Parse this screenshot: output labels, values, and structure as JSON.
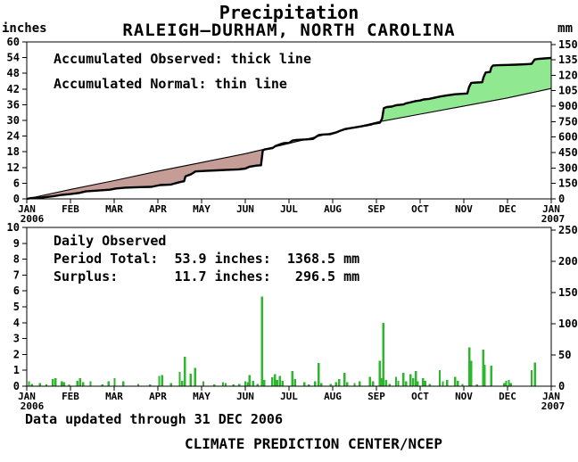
{
  "title": "Precipitation",
  "subtitle": "RALEIGH–DURHAM, NORTH CAROLINA",
  "units": {
    "left": "inches",
    "right": "mm"
  },
  "legend": {
    "observed": "Accumulated Observed: thick line",
    "normal": "Accumulated Normal: thin line"
  },
  "daily_panel": {
    "header": "Daily Observed",
    "period_total": "Period Total:  53.9 inches:  1368.5 mm",
    "surplus": "Surplus:       11.7 inches:   296.5 mm"
  },
  "footer": {
    "note": "Data updated through 31 DEC 2006",
    "org": "CLIMATE PREDICTION CENTER/NCEP"
  },
  "colors": {
    "surplus_fill": "#90e890",
    "deficit_fill": "#c69c96",
    "bar": "#2cb82c",
    "line": "#000000",
    "background": "#ffffff"
  },
  "chart_data": [
    {
      "type": "area",
      "title": "Accumulated precipitation, Raleigh-Durham NC, 1 Jan 2006 - 1 Jan 2007",
      "x_axis": {
        "unit": "months (0 = 1 JAN 2006)",
        "tick_labels": [
          "JAN",
          "FEB",
          "MAR",
          "APR",
          "MAY",
          "JUN",
          "JUL",
          "AUG",
          "SEP",
          "OCT",
          "NOV",
          "DEC",
          "JAN"
        ],
        "start_year": "2006",
        "end_year": "2007"
      },
      "y_left": {
        "unit": "inches",
        "min": 0,
        "max": 60,
        "ticks": [
          0,
          6,
          12,
          18,
          24,
          30,
          36,
          42,
          48,
          54,
          60
        ]
      },
      "y_right": {
        "unit": "mm",
        "min": 0,
        "max": 1500,
        "ticks": [
          0,
          150,
          300,
          450,
          600,
          750,
          900,
          1050,
          1200,
          1350,
          1500
        ]
      },
      "legend_position": "top-left inside plot",
      "grid": false,
      "series": [
        {
          "name": "Accumulated Observed",
          "line": "thick",
          "end_value_inches": 53.9,
          "end_value_mm": 1368.5,
          "points": [
            [
              0,
              0
            ],
            [
              0.1,
              0.3
            ],
            [
              0.35,
              0.55
            ],
            [
              0.6,
              1.0
            ],
            [
              0.8,
              1.55
            ],
            [
              1.0,
              1.85
            ],
            [
              1.2,
              2.3
            ],
            [
              1.35,
              2.85
            ],
            [
              1.65,
              3.2
            ],
            [
              1.9,
              3.5
            ],
            [
              2.05,
              4.0
            ],
            [
              2.25,
              4.3
            ],
            [
              2.6,
              4.5
            ],
            [
              2.85,
              4.6
            ],
            [
              3.05,
              5.3
            ],
            [
              3.3,
              5.5
            ],
            [
              3.5,
              6.4
            ],
            [
              3.6,
              6.75
            ],
            [
              3.63,
              8.6
            ],
            [
              3.76,
              9.4
            ],
            [
              3.86,
              10.5
            ],
            [
              4.1,
              10.7
            ],
            [
              4.35,
              10.9
            ],
            [
              4.6,
              11.1
            ],
            [
              4.85,
              11.3
            ],
            [
              5.0,
              11.6
            ],
            [
              5.1,
              12.3
            ],
            [
              5.25,
              12.7
            ],
            [
              5.36,
              12.85
            ],
            [
              5.4,
              18.5
            ],
            [
              5.44,
              18.9
            ],
            [
              5.62,
              19.4
            ],
            [
              5.7,
              20.3
            ],
            [
              5.8,
              20.9
            ],
            [
              5.88,
              21.3
            ],
            [
              6.0,
              21.4
            ],
            [
              6.08,
              22.3
            ],
            [
              6.15,
              22.5
            ],
            [
              6.35,
              22.7
            ],
            [
              6.55,
              22.9
            ],
            [
              6.68,
              24.4
            ],
            [
              6.78,
              24.6
            ],
            [
              6.95,
              24.75
            ],
            [
              7.08,
              25.4
            ],
            [
              7.15,
              25.9
            ],
            [
              7.28,
              26.7
            ],
            [
              7.5,
              27.3
            ],
            [
              7.65,
              27.7
            ],
            [
              7.87,
              28.4
            ],
            [
              7.95,
              28.8
            ],
            [
              8.08,
              29.1
            ],
            [
              8.13,
              30.7
            ],
            [
              8.17,
              34.7
            ],
            [
              8.24,
              35.1
            ],
            [
              8.35,
              35.3
            ],
            [
              8.45,
              35.8
            ],
            [
              8.62,
              36.1
            ],
            [
              8.67,
              36.5
            ],
            [
              8.8,
              37.0
            ],
            [
              8.9,
              37.4
            ],
            [
              9.0,
              37.6
            ],
            [
              9.08,
              38.0
            ],
            [
              9.2,
              38.2
            ],
            [
              9.45,
              39.1
            ],
            [
              9.6,
              39.5
            ],
            [
              9.8,
              40.0
            ],
            [
              10.08,
              40.3
            ],
            [
              10.12,
              42.75
            ],
            [
              10.17,
              44.35
            ],
            [
              10.3,
              44.5
            ],
            [
              10.42,
              44.6
            ],
            [
              10.45,
              46.4
            ],
            [
              10.5,
              48.3
            ],
            [
              10.6,
              48.5
            ],
            [
              10.63,
              50.3
            ],
            [
              10.67,
              51.0
            ],
            [
              10.8,
              51.1
            ],
            [
              11.0,
              51.2
            ],
            [
              11.2,
              51.3
            ],
            [
              11.45,
              51.5
            ],
            [
              11.55,
              51.6
            ],
            [
              11.62,
              53.3
            ],
            [
              11.7,
              53.5
            ],
            [
              11.85,
              53.7
            ],
            [
              12,
              53.9
            ]
          ]
        },
        {
          "name": "Accumulated Normal",
          "line": "thin",
          "end_value_inches": 42.2,
          "points": [
            [
              0,
              0
            ],
            [
              1,
              3.6
            ],
            [
              2,
              7.0
            ],
            [
              3,
              10.6
            ],
            [
              4,
              13.9
            ],
            [
              5,
              17.3
            ],
            [
              6,
              21.2
            ],
            [
              7,
              25.3
            ],
            [
              8,
              29.3
            ],
            [
              9,
              32.4
            ],
            [
              10,
              35.5
            ],
            [
              11,
              38.6
            ],
            [
              12,
              42.2
            ]
          ]
        }
      ],
      "fill_meaning": {
        "surplus": "green where observed above normal",
        "deficit": "brown where observed below normal"
      }
    },
    {
      "type": "bar",
      "title": "Daily Observed precipitation",
      "x_axis": {
        "unit": "months (0 = 1 JAN 2006)",
        "tick_labels": [
          "JAN",
          "FEB",
          "MAR",
          "APR",
          "MAY",
          "JUN",
          "JUL",
          "AUG",
          "SEP",
          "OCT",
          "NOV",
          "DEC",
          "JAN"
        ],
        "start_year": "2006",
        "end_year": "2007"
      },
      "y_left": {
        "unit": "inches",
        "min": 0,
        "max": 10,
        "ticks": [
          0,
          1,
          2,
          3,
          4,
          5,
          6,
          7,
          8,
          9,
          10
        ]
      },
      "y_right": {
        "unit": "mm",
        "min": 0,
        "max": 250,
        "ticks": [
          0,
          50,
          100,
          150,
          200,
          250
        ]
      },
      "grid": false,
      "bars": [
        [
          0.05,
          0.3
        ],
        [
          0.12,
          0.15
        ],
        [
          0.3,
          0.2
        ],
        [
          0.45,
          0.1
        ],
        [
          0.6,
          0.45
        ],
        [
          0.66,
          0.5
        ],
        [
          0.8,
          0.3
        ],
        [
          0.85,
          0.25
        ],
        [
          0.97,
          0.1
        ],
        [
          1.16,
          0.35
        ],
        [
          1.22,
          0.5
        ],
        [
          1.29,
          0.25
        ],
        [
          1.46,
          0.3
        ],
        [
          1.73,
          0.1
        ],
        [
          1.87,
          0.3
        ],
        [
          2.01,
          0.5
        ],
        [
          2.21,
          0.3
        ],
        [
          2.55,
          0.15
        ],
        [
          2.82,
          0.1
        ],
        [
          3.03,
          0.65
        ],
        [
          3.1,
          0.7
        ],
        [
          3.3,
          0.2
        ],
        [
          3.5,
          0.9
        ],
        [
          3.56,
          0.35
        ],
        [
          3.62,
          1.85
        ],
        [
          3.75,
          0.8
        ],
        [
          3.85,
          1.15
        ],
        [
          4.04,
          0.3
        ],
        [
          4.29,
          0.1
        ],
        [
          4.49,
          0.25
        ],
        [
          4.55,
          0.2
        ],
        [
          4.73,
          0.1
        ],
        [
          4.86,
          0.15
        ],
        [
          5.0,
          0.3
        ],
        [
          5.05,
          0.25
        ],
        [
          5.1,
          0.7
        ],
        [
          5.18,
          0.35
        ],
        [
          5.28,
          0.15
        ],
        [
          5.38,
          5.65
        ],
        [
          5.43,
          0.4
        ],
        [
          5.62,
          0.55
        ],
        [
          5.68,
          0.75
        ],
        [
          5.73,
          0.4
        ],
        [
          5.79,
          0.65
        ],
        [
          5.85,
          0.35
        ],
        [
          6.08,
          0.95
        ],
        [
          6.14,
          0.45
        ],
        [
          6.35,
          0.25
        ],
        [
          6.45,
          0.1
        ],
        [
          6.6,
          0.3
        ],
        [
          6.68,
          1.45
        ],
        [
          6.74,
          0.2
        ],
        [
          6.95,
          0.15
        ],
        [
          7.08,
          0.25
        ],
        [
          7.15,
          0.45
        ],
        [
          7.27,
          0.85
        ],
        [
          7.33,
          0.25
        ],
        [
          7.5,
          0.2
        ],
        [
          7.62,
          0.3
        ],
        [
          7.85,
          0.6
        ],
        [
          7.92,
          0.3
        ],
        [
          8.08,
          1.6
        ],
        [
          8.12,
          0.5
        ],
        [
          8.16,
          4.0
        ],
        [
          8.22,
          0.4
        ],
        [
          8.3,
          0.15
        ],
        [
          8.45,
          0.6
        ],
        [
          8.5,
          0.35
        ],
        [
          8.62,
          0.85
        ],
        [
          8.68,
          0.3
        ],
        [
          8.78,
          0.75
        ],
        [
          8.84,
          0.5
        ],
        [
          8.9,
          0.95
        ],
        [
          8.95,
          0.3
        ],
        [
          9.07,
          0.5
        ],
        [
          9.12,
          0.35
        ],
        [
          9.22,
          0.15
        ],
        [
          9.45,
          1.0
        ],
        [
          9.52,
          0.3
        ],
        [
          9.62,
          0.4
        ],
        [
          9.8,
          0.6
        ],
        [
          9.86,
          0.35
        ],
        [
          9.97,
          0.15
        ],
        [
          10.13,
          2.45
        ],
        [
          10.17,
          1.6
        ],
        [
          10.3,
          0.1
        ],
        [
          10.44,
          2.3
        ],
        [
          10.48,
          1.35
        ],
        [
          10.63,
          1.3
        ],
        [
          10.92,
          0.2
        ],
        [
          10.97,
          0.35
        ],
        [
          11.03,
          0.4
        ],
        [
          11.08,
          0.2
        ],
        [
          11.55,
          1.0
        ],
        [
          11.63,
          1.5
        ]
      ]
    }
  ]
}
